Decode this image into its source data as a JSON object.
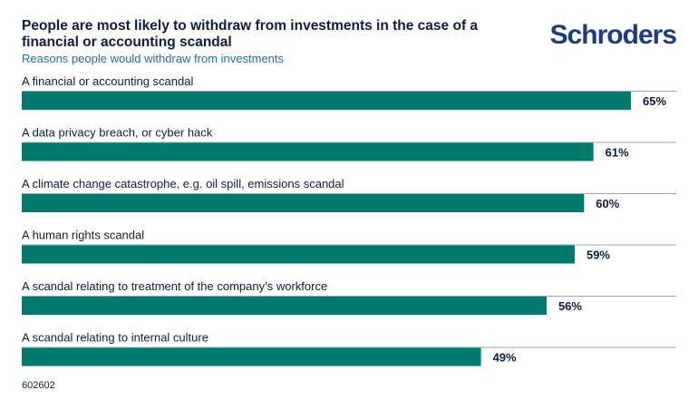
{
  "header": {
    "title": "People are most likely to withdraw from investments in the case of a financial or accounting scandal",
    "subtitle": "Reasons people would withdraw from investments",
    "logo_text": "Schroders"
  },
  "footer": {
    "code": "602602"
  },
  "colors": {
    "bar": "#007a6c",
    "rule": "#9aa5b1",
    "text": "#0b1e3f",
    "subtitle": "#1f6fa6",
    "logo": "#1a3b86"
  },
  "chart_data": {
    "type": "bar",
    "orientation": "horizontal",
    "categories": [
      "A financial or accounting scandal",
      "A data privacy breach, or cyber hack",
      "A climate change catastrophe, e.g. oil spill, emissions scandal",
      "A human rights scandal",
      "A scandal relating to treatment of the company’s workforce",
      "A scandal relating to internal culture"
    ],
    "values": [
      65,
      61,
      60,
      59,
      56,
      49
    ],
    "value_labels": [
      "65%",
      "61%",
      "60%",
      "59%",
      "56%",
      "49%"
    ],
    "title": "People are most likely to withdraw from investments in the case of a financial or accounting scandal",
    "subtitle": "Reasons people would withdraw from investments",
    "xlim": [
      0,
      70
    ],
    "grid": false,
    "legend": "none"
  }
}
